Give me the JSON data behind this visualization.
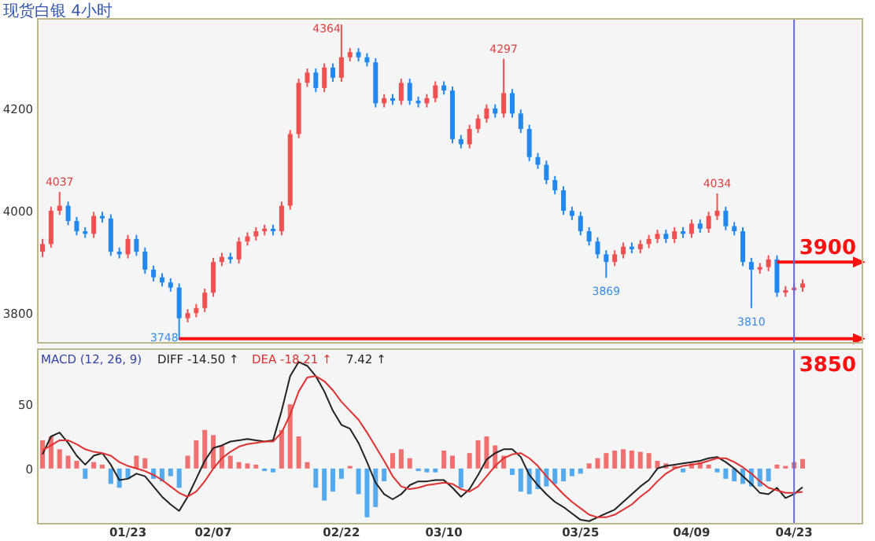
{
  "chart_data": [
    {
      "type": "candlestick",
      "title": "现货白银 4小时",
      "categories": [
        null,
        null,
        null,
        null,
        null,
        null,
        null,
        null,
        null,
        null,
        "01/23",
        null,
        null,
        null,
        null,
        null,
        null,
        null,
        null,
        null,
        "02/07",
        null,
        null,
        null,
        null,
        null,
        null,
        null,
        null,
        null,
        null,
        null,
        null,
        null,
        null,
        "02/22",
        null,
        null,
        null,
        null,
        null,
        null,
        null,
        null,
        null,
        null,
        null,
        "03/10",
        null,
        null,
        null,
        null,
        null,
        null,
        null,
        null,
        null,
        null,
        null,
        null,
        null,
        null,
        null,
        "03/25",
        null,
        null,
        null,
        null,
        null,
        null,
        null,
        null,
        null,
        null,
        null,
        null,
        "04/09",
        null,
        null,
        null,
        null,
        null,
        null,
        null,
        null,
        null,
        null,
        null,
        "04/23",
        null
      ],
      "ohlc": [
        [
          3920,
          3945,
          3910,
          3935
        ],
        [
          3935,
          4008,
          3928,
          4000
        ],
        [
          4000,
          4037,
          3992,
          4010
        ],
        [
          4010,
          4018,
          3972,
          3980
        ],
        [
          3980,
          3988,
          3952,
          3960
        ],
        [
          3960,
          3968,
          3947,
          3955
        ],
        [
          3955,
          3998,
          3947,
          3990
        ],
        [
          3990,
          3998,
          3977,
          3985
        ],
        [
          3985,
          3993,
          3912,
          3920
        ],
        [
          3920,
          3928,
          3907,
          3915
        ],
        [
          3915,
          3953,
          3907,
          3945
        ],
        [
          3945,
          3953,
          3912,
          3920
        ],
        [
          3920,
          3928,
          3877,
          3885
        ],
        [
          3885,
          3893,
          3862,
          3870
        ],
        [
          3870,
          3878,
          3852,
          3860
        ],
        [
          3860,
          3868,
          3842,
          3850
        ],
        [
          3850,
          3858,
          3748,
          3790
        ],
        [
          3790,
          3808,
          3782,
          3800
        ],
        [
          3800,
          3818,
          3792,
          3810
        ],
        [
          3810,
          3848,
          3802,
          3840
        ],
        [
          3840,
          3908,
          3832,
          3900
        ],
        [
          3900,
          3918,
          3892,
          3910
        ],
        [
          3910,
          3918,
          3897,
          3905
        ],
        [
          3905,
          3948,
          3897,
          3940
        ],
        [
          3940,
          3958,
          3932,
          3950
        ],
        [
          3950,
          3968,
          3942,
          3960
        ],
        [
          3960,
          3973,
          3952,
          3965
        ],
        [
          3965,
          3973,
          3952,
          3960
        ],
        [
          3960,
          4018,
          3952,
          4010
        ],
        [
          4010,
          4158,
          4002,
          4150
        ],
        [
          4150,
          4258,
          4142,
          4250
        ],
        [
          4250,
          4278,
          4242,
          4270
        ],
        [
          4270,
          4278,
          4232,
          4240
        ],
        [
          4240,
          4288,
          4232,
          4280
        ],
        [
          4280,
          4288,
          4252,
          4260
        ],
        [
          4260,
          4364,
          4252,
          4300
        ],
        [
          4300,
          4318,
          4292,
          4310
        ],
        [
          4310,
          4318,
          4292,
          4300
        ],
        [
          4300,
          4308,
          4282,
          4290
        ],
        [
          4290,
          4298,
          4202,
          4210
        ],
        [
          4210,
          4228,
          4202,
          4220
        ],
        [
          4220,
          4228,
          4207,
          4215
        ],
        [
          4215,
          4258,
          4207,
          4250
        ],
        [
          4250,
          4258,
          4207,
          4215
        ],
        [
          4215,
          4223,
          4202,
          4210
        ],
        [
          4210,
          4228,
          4202,
          4220
        ],
        [
          4220,
          4253,
          4212,
          4245
        ],
        [
          4245,
          4253,
          4227,
          4235
        ],
        [
          4235,
          4243,
          4132,
          4140
        ],
        [
          4140,
          4148,
          4122,
          4130
        ],
        [
          4130,
          4168,
          4122,
          4160
        ],
        [
          4160,
          4188,
          4152,
          4180
        ],
        [
          4180,
          4208,
          4172,
          4200
        ],
        [
          4200,
          4208,
          4182,
          4190
        ],
        [
          4190,
          4297,
          4182,
          4230
        ],
        [
          4230,
          4238,
          4182,
          4190
        ],
        [
          4190,
          4198,
          4152,
          4160
        ],
        [
          4160,
          4168,
          4097,
          4105
        ],
        [
          4105,
          4113,
          4082,
          4090
        ],
        [
          4090,
          4098,
          4052,
          4060
        ],
        [
          4060,
          4068,
          4032,
          4040
        ],
        [
          4040,
          4048,
          3992,
          4000
        ],
        [
          4000,
          4008,
          3982,
          3990
        ],
        [
          3990,
          3998,
          3952,
          3960
        ],
        [
          3960,
          3968,
          3932,
          3940
        ],
        [
          3940,
          3948,
          3907,
          3915
        ],
        [
          3915,
          3923,
          3869,
          3900
        ],
        [
          3900,
          3923,
          3892,
          3915
        ],
        [
          3915,
          3938,
          3907,
          3930
        ],
        [
          3930,
          3938,
          3917,
          3925
        ],
        [
          3925,
          3943,
          3917,
          3935
        ],
        [
          3935,
          3953,
          3927,
          3945
        ],
        [
          3945,
          3963,
          3937,
          3955
        ],
        [
          3955,
          3963,
          3937,
          3945
        ],
        [
          3945,
          3968,
          3937,
          3960
        ],
        [
          3960,
          3968,
          3947,
          3955
        ],
        [
          3955,
          3983,
          3947,
          3975
        ],
        [
          3975,
          3983,
          3957,
          3965
        ],
        [
          3965,
          3998,
          3957,
          3990
        ],
        [
          3990,
          4034,
          3982,
          4000
        ],
        [
          4000,
          4008,
          3962,
          3970
        ],
        [
          3970,
          3978,
          3952,
          3960
        ],
        [
          3960,
          3968,
          3892,
          3900
        ],
        [
          3900,
          3908,
          3810,
          3885
        ],
        [
          3885,
          3898,
          3877,
          3890
        ],
        [
          3890,
          3913,
          3882,
          3905
        ],
        [
          3905,
          3913,
          3832,
          3840
        ],
        [
          3840,
          3853,
          3832,
          3845
        ],
        [
          3845,
          3858,
          3837,
          3850
        ],
        [
          3850,
          3866,
          3842,
          3858
        ]
      ],
      "colors": [
        "#f05050",
        "#f05050",
        "#f05050",
        "#2288ee",
        "#2288ee",
        "#2288ee",
        "#f05050",
        "#2288ee",
        "#2288ee",
        "#2288ee",
        "#f05050",
        "#2288ee",
        "#2288ee",
        "#2288ee",
        "#2288ee",
        "#2288ee",
        "#2288ee",
        "#f05050",
        "#f05050",
        "#f05050",
        "#f05050",
        "#f05050",
        "#2288ee",
        "#f05050",
        "#f05050",
        "#f05050",
        "#f05050",
        "#2288ee",
        "#f05050",
        "#f05050",
        "#f05050",
        "#f05050",
        "#2288ee",
        "#f05050",
        "#2288ee",
        "#f05050",
        "#f05050",
        "#2288ee",
        "#2288ee",
        "#2288ee",
        "#f05050",
        "#2288ee",
        "#f05050",
        "#2288ee",
        "#2288ee",
        "#f05050",
        "#f05050",
        "#2288ee",
        "#2288ee",
        "#2288ee",
        "#f05050",
        "#f05050",
        "#f05050",
        "#2288ee",
        "#f05050",
        "#2288ee",
        "#2288ee",
        "#2288ee",
        "#2288ee",
        "#2288ee",
        "#2288ee",
        "#2288ee",
        "#2288ee",
        "#2288ee",
        "#2288ee",
        "#2288ee",
        "#2288ee",
        "#f05050",
        "#f05050",
        "#2288ee",
        "#f05050",
        "#f05050",
        "#f05050",
        "#2288ee",
        "#f05050",
        "#2288ee",
        "#f05050",
        "#2288ee",
        "#f05050",
        "#f05050",
        "#2288ee",
        "#2288ee",
        "#2288ee",
        "#2288ee",
        "#f05050",
        "#f05050",
        "#2288ee",
        "#f05050",
        "#f05050",
        "#f05050"
      ],
      "ylim": [
        3742,
        4375
      ],
      "yticks": [
        3800,
        4000,
        4200
      ],
      "tick_labels": "y",
      "annotations": [
        {
          "text": "4037",
          "y": 4037
        },
        {
          "text": "4297",
          "y": 4297
        },
        {
          "text": "3869",
          "y": 3869
        },
        {
          "text": "4034",
          "y": 4034
        },
        {
          "text": "3810",
          "y": 3810
        },
        "4364",
        "3748",
        "3850"
      ],
      "ref_lines": [
        {
          "axis": "y",
          "value": 3900,
          "label": "3900",
          "color": "#ff1010"
        },
        {
          "axis": "y",
          "value": 3750,
          "color": "#ff1010"
        },
        {
          "axis": "x",
          "value": "04/23",
          "color": "#6a6acc"
        }
      ]
    },
    {
      "type": "bar",
      "title": "MACD (12, 26, 9)",
      "categories": [
        null,
        null,
        null,
        null,
        null,
        null,
        null,
        null,
        null,
        null,
        "01/23",
        null,
        null,
        null,
        null,
        null,
        null,
        null,
        null,
        null,
        "02/07",
        null,
        null,
        null,
        null,
        null,
        null,
        null,
        null,
        null,
        null,
        null,
        null,
        null,
        null,
        "02/22",
        null,
        null,
        null,
        null,
        null,
        null,
        null,
        null,
        null,
        null,
        null,
        "03/10",
        null,
        null,
        null,
        null,
        null,
        null,
        null,
        null,
        null,
        null,
        null,
        null,
        null,
        null,
        null,
        "03/25",
        null,
        null,
        null,
        null,
        null,
        null,
        null,
        null,
        null,
        null,
        null,
        null,
        "04/09",
        null,
        null,
        null,
        null,
        null,
        null,
        null,
        null,
        null,
        null,
        null,
        "04/23",
        null
      ],
      "ylim": [
        -43,
        93
      ],
      "yticks": [
        0,
        50
      ],
      "annotations": [
        "DIFF  -14.50 ↑",
        "DEA  -18.21 ↑",
        "7.42 ↑"
      ],
      "ref_lines": [
        {
          "axis": "x",
          "value": "04/23",
          "color": "#6a6acc"
        }
      ],
      "series": [
        {
          "type": "bar",
          "values": [
            22,
            25,
            15,
            10,
            6,
            -8,
            5,
            3,
            -12,
            -15,
            -8,
            10,
            8,
            -8,
            -10,
            -6,
            -15,
            10,
            22,
            30,
            26,
            18,
            10,
            5,
            4,
            3,
            -2,
            -3,
            30,
            50,
            25,
            5,
            -15,
            -25,
            -18,
            -8,
            2,
            -20,
            -38,
            -30,
            -10,
            12,
            15,
            8,
            -2,
            -3,
            -3,
            14,
            10,
            -15,
            12,
            22,
            25,
            18,
            10,
            -5,
            -18,
            -20,
            -16,
            -14,
            -12,
            -10,
            -6,
            -4,
            4,
            8,
            12,
            14,
            15,
            14,
            13,
            12,
            6,
            4,
            2,
            -3,
            4,
            5,
            3,
            -3,
            -8,
            -10,
            -12,
            -14,
            -14,
            -10,
            3,
            2,
            5,
            7.42
          ],
          "colors": [
            "#f07070",
            "#f07070",
            "#f07070",
            "#f07070",
            "#f07070",
            "#55aaee",
            "#f07070",
            "#f07070",
            "#55aaee",
            "#55aaee",
            "#55aaee",
            "#f07070",
            "#f07070",
            "#55aaee",
            "#55aaee",
            "#55aaee",
            "#55aaee",
            "#f07070",
            "#f07070",
            "#f07070",
            "#f07070",
            "#f07070",
            "#f07070",
            "#f07070",
            "#f07070",
            "#f07070",
            "#55aaee",
            "#55aaee",
            "#f07070",
            "#f07070",
            "#f07070",
            "#f07070",
            "#55aaee",
            "#55aaee",
            "#55aaee",
            "#55aaee",
            "#f07070",
            "#55aaee",
            "#55aaee",
            "#55aaee",
            "#55aaee",
            "#f07070",
            "#f07070",
            "#f07070",
            "#55aaee",
            "#55aaee",
            "#55aaee",
            "#f07070",
            "#f07070",
            "#55aaee",
            "#f07070",
            "#f07070",
            "#f07070",
            "#f07070",
            "#f07070",
            "#55aaee",
            "#55aaee",
            "#55aaee",
            "#55aaee",
            "#55aaee",
            "#55aaee",
            "#55aaee",
            "#55aaee",
            "#55aaee",
            "#f07070",
            "#f07070",
            "#f07070",
            "#f07070",
            "#f07070",
            "#f07070",
            "#f07070",
            "#f07070",
            "#f07070",
            "#f07070",
            "#f07070",
            "#55aaee",
            "#f07070",
            "#f07070",
            "#f07070",
            "#55aaee",
            "#55aaee",
            "#55aaee",
            "#55aaee",
            "#55aaee",
            "#55aaee",
            "#55aaee",
            "#f07070",
            "#f07070",
            "#f07070",
            "#f07070"
          ]
        },
        {
          "type": "line",
          "color": "#222222",
          "values": [
            11,
            25,
            28,
            20,
            10,
            3,
            10,
            12,
            3,
            -9,
            -8,
            -4,
            -6,
            -14,
            -22,
            -28,
            -33,
            -22,
            -8,
            6,
            16,
            18,
            21,
            22,
            23,
            22,
            21,
            22,
            45,
            72,
            83,
            80,
            72,
            60,
            45,
            34,
            31,
            20,
            5,
            -11,
            -20,
            -24,
            -20,
            -13,
            -10,
            -10,
            -9,
            -9,
            -15,
            -22,
            -16,
            -5,
            7,
            12,
            15,
            15,
            9,
            -5,
            -13,
            -20,
            -26,
            -30,
            -35,
            -40,
            -41,
            -38,
            -35,
            -32,
            -26,
            -20,
            -14,
            -9,
            0,
            2,
            3,
            4,
            5,
            6,
            8,
            9,
            5,
            0,
            -6,
            -12,
            -19,
            -20,
            -15,
            -23,
            -20,
            -14.5
          ]
        },
        {
          "type": "line",
          "color": "#e03030",
          "values": [
            14,
            18,
            22,
            22,
            19,
            15,
            13,
            12,
            10,
            5,
            2,
            0,
            -2,
            -5,
            -9,
            -14,
            -19,
            -22,
            -18,
            -10,
            0,
            8,
            13,
            17,
            19,
            20,
            21,
            21,
            28,
            42,
            60,
            71,
            72,
            68,
            61,
            52,
            45,
            38,
            28,
            17,
            6,
            -6,
            -14,
            -16,
            -15,
            -13,
            -12,
            -11,
            -12,
            -16,
            -18,
            -14,
            -6,
            2,
            8,
            11,
            12,
            8,
            2,
            -6,
            -13,
            -20,
            -26,
            -31,
            -36,
            -38,
            -38,
            -36,
            -32,
            -28,
            -22,
            -17,
            -10,
            -4,
            0,
            2,
            3,
            4,
            6,
            8,
            8,
            5,
            1,
            -4,
            -10,
            -15,
            -17,
            -19,
            -19,
            -18.21
          ]
        }
      ]
    }
  ]
}
